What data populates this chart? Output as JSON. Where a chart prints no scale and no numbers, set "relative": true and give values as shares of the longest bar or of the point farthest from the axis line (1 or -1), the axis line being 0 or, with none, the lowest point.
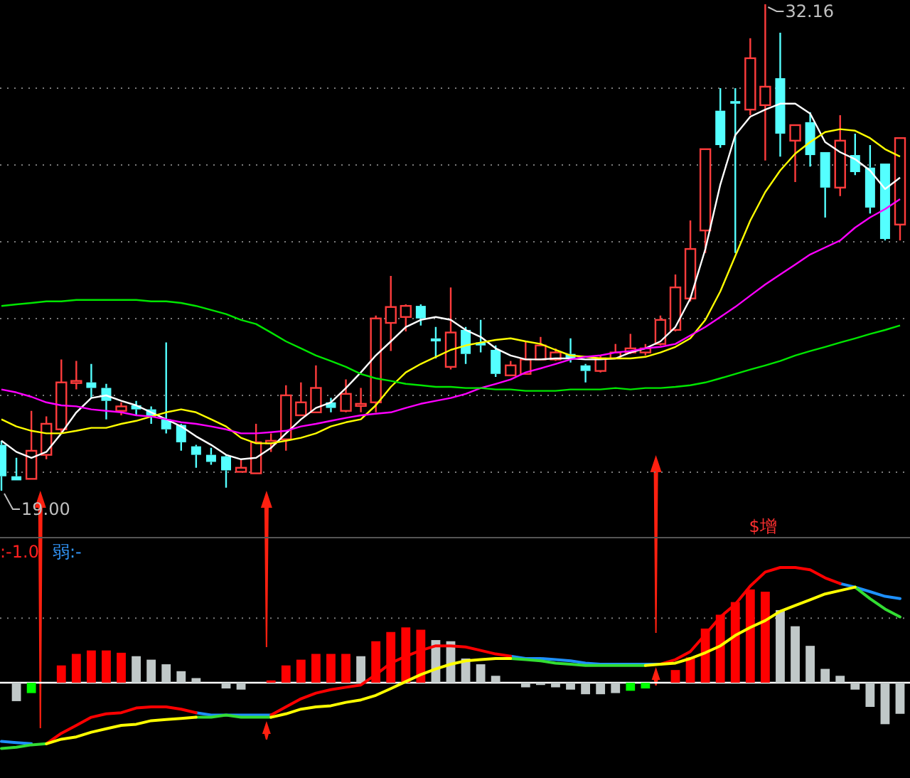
{
  "chart_data": [
    {
      "type": "candlestick",
      "grid": true,
      "categories": [
        null,
        null,
        null,
        null,
        null,
        null,
        null,
        null,
        null,
        null,
        null,
        null,
        null,
        null,
        null,
        null,
        null,
        null,
        null,
        null,
        null,
        null,
        null,
        null,
        null,
        null,
        null,
        null,
        null,
        null,
        null,
        null,
        null,
        null,
        null,
        null,
        null,
        null,
        null,
        null,
        null,
        null,
        null,
        null,
        null,
        null,
        null,
        null,
        null,
        null,
        null,
        null,
        null,
        null,
        null,
        null,
        null,
        null,
        null,
        null,
        null
      ],
      "ohlc": [
        [
          20.24,
          20.35,
          19.0,
          19.39
        ],
        [
          19.39,
          19.89,
          19.28,
          19.28
        ],
        [
          19.32,
          21.16,
          19.32,
          20.08
        ],
        [
          19.97,
          21.01,
          19.85,
          20.81
        ],
        [
          20.66,
          22.55,
          20.58,
          21.93
        ],
        [
          21.93,
          22.51,
          21.74,
          21.97
        ],
        [
          21.93,
          22.43,
          21.51,
          21.78
        ],
        [
          21.78,
          21.89,
          20.93,
          21.43
        ],
        [
          21.16,
          21.39,
          21.04,
          21.28
        ],
        [
          21.31,
          21.43,
          21.04,
          21.2
        ],
        [
          21.2,
          21.28,
          20.81,
          21.01
        ],
        [
          20.93,
          23.01,
          20.55,
          20.66
        ],
        [
          20.78,
          20.81,
          20.08,
          20.31
        ],
        [
          20.2,
          20.24,
          19.62,
          19.97
        ],
        [
          19.97,
          20.16,
          19.7,
          19.78
        ],
        [
          19.93,
          19.97,
          19.08,
          19.55
        ],
        [
          19.51,
          19.85,
          19.51,
          19.62
        ],
        [
          19.47,
          20.81,
          19.47,
          20.31
        ],
        [
          20.28,
          20.55,
          20.05,
          20.35
        ],
        [
          20.39,
          21.85,
          20.08,
          21.58
        ],
        [
          21.04,
          21.93,
          21.04,
          21.39
        ],
        [
          21.12,
          22.39,
          21.12,
          21.78
        ],
        [
          21.39,
          21.51,
          21.12,
          21.24
        ],
        [
          21.16,
          22.01,
          21.12,
          21.62
        ],
        [
          21.31,
          21.78,
          21.12,
          21.35
        ],
        [
          21.39,
          23.74,
          21.12,
          23.66
        ],
        [
          23.54,
          24.81,
          22.78,
          23.97
        ],
        [
          23.7,
          24.04,
          23.31,
          24.0
        ],
        [
          24.0,
          24.04,
          23.47,
          23.66
        ],
        [
          23.12,
          23.43,
          22.58,
          23.04
        ],
        [
          22.35,
          24.5,
          22.28,
          23.28
        ],
        [
          23.35,
          23.43,
          22.43,
          22.7
        ],
        [
          23.01,
          23.62,
          22.74,
          22.93
        ],
        [
          22.81,
          22.93,
          22.08,
          22.16
        ],
        [
          22.12,
          22.51,
          22.12,
          22.39
        ],
        [
          22.16,
          23.04,
          22.16,
          22.55
        ],
        [
          22.55,
          23.16,
          22.55,
          22.93
        ],
        [
          22.55,
          22.85,
          22.51,
          22.74
        ],
        [
          22.7,
          23.12,
          22.47,
          22.58
        ],
        [
          22.39,
          22.43,
          21.93,
          22.24
        ],
        [
          22.24,
          22.66,
          22.2,
          22.58
        ],
        [
          22.58,
          22.97,
          22.58,
          22.74
        ],
        [
          22.74,
          23.24,
          22.7,
          22.85
        ],
        [
          22.74,
          22.97,
          22.66,
          22.85
        ],
        [
          22.97,
          23.74,
          22.93,
          23.62
        ],
        [
          23.35,
          24.85,
          23.31,
          24.5
        ],
        [
          24.2,
          26.31,
          24.12,
          25.54
        ],
        [
          26.04,
          28.24,
          25.43,
          28.24
        ],
        [
          29.28,
          29.89,
          28.28,
          28.35
        ],
        [
          29.54,
          29.89,
          25.43,
          29.47
        ],
        [
          29.31,
          31.24,
          29.16,
          30.7
        ],
        [
          29.43,
          32.16,
          27.93,
          29.93
        ],
        [
          30.16,
          31.39,
          28.04,
          28.66
        ],
        [
          28.47,
          28.89,
          27.35,
          28.89
        ],
        [
          28.97,
          29.24,
          27.77,
          28.08
        ],
        [
          28.16,
          28.16,
          26.39,
          27.2
        ],
        [
          27.2,
          29.16,
          26.97,
          28.47
        ],
        [
          28.08,
          28.66,
          27.54,
          27.62
        ],
        [
          27.74,
          28.35,
          26.5,
          26.66
        ],
        [
          27.85,
          27.85,
          25.77,
          25.81
        ],
        [
          26.2,
          28.54,
          25.77,
          28.54
        ]
      ],
      "colors": [
        "#54ffff",
        "#54ffff",
        "#ff3c3c",
        "#ff3c3c",
        "#ff3c3c",
        "#ff3c3c",
        "#54ffff",
        "#54ffff",
        "#ff3c3c",
        "#54ffff",
        "#54ffff",
        "#54ffff",
        "#54ffff",
        "#54ffff",
        "#54ffff",
        "#54ffff",
        "#ff3c3c",
        "#ff3c3c",
        "#ff3c3c",
        "#ff3c3c",
        "#ff3c3c",
        "#ff3c3c",
        "#54ffff",
        "#ff3c3c",
        "#ff3c3c",
        "#ff3c3c",
        "#ff3c3c",
        "#ff3c3c",
        "#54ffff",
        "#54ffff",
        "#ff3c3c",
        "#54ffff",
        "#54ffff",
        "#54ffff",
        "#ff3c3c",
        "#ff3c3c",
        "#ff3c3c",
        "#ff3c3c",
        "#54ffff",
        "#54ffff",
        "#ff3c3c",
        "#ff3c3c",
        "#ff3c3c",
        "#ff3c3c",
        "#ff3c3c",
        "#ff3c3c",
        "#ff3c3c",
        "#ff3c3c",
        "#54ffff",
        "#54ffff",
        "#ff3c3c",
        "#ff3c3c",
        "#54ffff",
        "#ff3c3c",
        "#54ffff",
        "#54ffff",
        "#ff3c3c",
        "#54ffff",
        "#54ffff",
        "#54ffff",
        "#ff3c3c"
      ],
      "series": [
        {
          "type": "line",
          "color": "#ffffff",
          "values": [
            20.35,
            20.05,
            19.89,
            20.05,
            20.55,
            21.12,
            21.51,
            21.58,
            21.43,
            21.31,
            21.12,
            20.93,
            20.74,
            20.47,
            20.24,
            19.97,
            19.85,
            19.89,
            20.16,
            20.55,
            20.93,
            21.24,
            21.39,
            21.78,
            22.2,
            22.66,
            23.04,
            23.43,
            23.62,
            23.7,
            23.62,
            23.35,
            23.16,
            22.85,
            22.66,
            22.55,
            22.55,
            22.58,
            22.58,
            22.55,
            22.55,
            22.58,
            22.74,
            22.85,
            23.04,
            23.43,
            24.2,
            25.54,
            27.28,
            28.62,
            29.12,
            29.31,
            29.47,
            29.47,
            29.2,
            28.43,
            28.16,
            27.97,
            27.66,
            27.16,
            27.47
          ]
        },
        {
          "type": "line",
          "color": "#ffff00",
          "values": [
            20.93,
            20.74,
            20.62,
            20.55,
            20.55,
            20.62,
            20.7,
            20.7,
            20.81,
            20.89,
            21.01,
            21.12,
            21.2,
            21.12,
            20.93,
            20.74,
            20.43,
            20.28,
            20.28,
            20.35,
            20.43,
            20.55,
            20.74,
            20.85,
            20.93,
            21.31,
            21.81,
            22.2,
            22.43,
            22.62,
            22.81,
            22.93,
            23.01,
            23.08,
            23.12,
            23.04,
            22.97,
            22.81,
            22.66,
            22.62,
            22.58,
            22.58,
            22.58,
            22.62,
            22.74,
            22.89,
            23.12,
            23.62,
            24.39,
            25.35,
            26.31,
            27.08,
            27.66,
            28.12,
            28.43,
            28.7,
            28.78,
            28.74,
            28.54,
            28.24,
            28.04
          ]
        },
        {
          "type": "line",
          "color": "#ff00ff",
          "values": [
            21.74,
            21.66,
            21.54,
            21.39,
            21.31,
            21.28,
            21.2,
            21.16,
            21.12,
            21.04,
            21.01,
            20.93,
            20.85,
            20.81,
            20.74,
            20.66,
            20.55,
            20.55,
            20.58,
            20.62,
            20.74,
            20.81,
            20.89,
            20.97,
            21.04,
            21.08,
            21.12,
            21.24,
            21.35,
            21.43,
            21.51,
            21.62,
            21.78,
            21.89,
            22.01,
            22.2,
            22.31,
            22.43,
            22.55,
            22.62,
            22.66,
            22.74,
            22.78,
            22.85,
            22.89,
            22.97,
            23.2,
            23.43,
            23.7,
            23.97,
            24.28,
            24.58,
            24.85,
            25.12,
            25.39,
            25.58,
            25.77,
            26.12,
            26.39,
            26.62,
            26.89
          ]
        },
        {
          "type": "line",
          "color": "#00e600",
          "values": [
            24.0,
            24.04,
            24.08,
            24.12,
            24.12,
            24.16,
            24.16,
            24.16,
            24.16,
            24.16,
            24.12,
            24.12,
            24.08,
            24.0,
            23.89,
            23.78,
            23.62,
            23.51,
            23.28,
            23.04,
            22.85,
            22.66,
            22.51,
            22.35,
            22.16,
            22.04,
            21.97,
            21.89,
            21.85,
            21.81,
            21.81,
            21.78,
            21.78,
            21.74,
            21.74,
            21.7,
            21.7,
            21.7,
            21.74,
            21.74,
            21.74,
            21.78,
            21.74,
            21.78,
            21.78,
            21.81,
            21.85,
            21.93,
            22.04,
            22.16,
            22.28,
            22.39,
            22.51,
            22.66,
            22.78,
            22.89,
            23.01,
            23.12,
            23.24,
            23.35,
            23.47
          ]
        }
      ],
      "annotations": [
        "32.16",
        "19.00"
      ]
    },
    {
      "type": "bar",
      "relative": true,
      "ref_lines": [
        {
          "axis": "y",
          "value": 0.56,
          "line_style": "dotted",
          "color": "#7a7a7a"
        }
      ],
      "categories": [
        null,
        null,
        null,
        null,
        null,
        null,
        null,
        null,
        null,
        null,
        null,
        null,
        null,
        null,
        null,
        null,
        null,
        null,
        null,
        null,
        null,
        null,
        null,
        null,
        null,
        null,
        null,
        null,
        null,
        null,
        null,
        null,
        null,
        null,
        null,
        null,
        null,
        null,
        null,
        null,
        null,
        null,
        null,
        null,
        null,
        null,
        null,
        null,
        null,
        null,
        null,
        null,
        null,
        null,
        null,
        null,
        null,
        null,
        null,
        null,
        null
      ],
      "series": [
        {
          "type": "bar",
          "colors": [
            null,
            "#c0c8c8",
            "#00ff00",
            null,
            "#ff0000",
            "#ff0000",
            "#ff0000",
            "#ff0000",
            "#ff0000",
            "#c0c8c8",
            "#c0c8c8",
            "#c0c8c8",
            "#c0c8c8",
            "#c0c8c8",
            null,
            "#c0c8c8",
            "#c0c8c8",
            null,
            "#ff0000",
            "#ff0000",
            "#ff0000",
            "#ff0000",
            "#ff0000",
            "#ff0000",
            "#c0c8c8",
            "#ff0000",
            "#ff0000",
            "#ff0000",
            "#ff0000",
            "#c0c8c8",
            "#c0c8c8",
            "#c0c8c8",
            "#c0c8c8",
            "#c0c8c8",
            null,
            "#c0c8c8",
            "#c0c8c8",
            "#c0c8c8",
            "#c0c8c8",
            "#c0c8c8",
            "#c0c8c8",
            "#c0c8c8",
            "#00ff00",
            "#00ff00",
            null,
            "#ff0000",
            "#ff0000",
            "#ff0000",
            "#ff0000",
            "#ff0000",
            "#ff0000",
            "#ff0000",
            "#c0c8c8",
            "#c0c8c8",
            "#c0c8c8",
            "#c0c8c8",
            "#c0c8c8",
            "#c0c8c8",
            "#c0c8c8",
            "#c0c8c8",
            "#c0c8c8"
          ],
          "values": [
            null,
            -0.16,
            -0.09,
            null,
            0.15,
            0.25,
            0.28,
            0.28,
            0.26,
            0.23,
            0.2,
            0.16,
            0.1,
            0.04,
            null,
            -0.05,
            -0.06,
            null,
            0.02,
            0.15,
            0.2,
            0.25,
            0.25,
            0.25,
            0.23,
            0.36,
            0.44,
            0.48,
            0.46,
            0.37,
            0.36,
            0.21,
            0.16,
            0.06,
            null,
            -0.04,
            -0.02,
            -0.04,
            -0.06,
            -0.1,
            -0.1,
            -0.09,
            -0.07,
            -0.05,
            null,
            0.11,
            0.22,
            0.47,
            0.59,
            0.7,
            0.81,
            0.79,
            0.63,
            0.49,
            0.32,
            0.12,
            0.06,
            -0.06,
            -0.21,
            -0.36,
            -0.27
          ]
        },
        {
          "type": "line",
          "color": "#1e90ff",
          "values": [
            -0.51,
            -0.52,
            -0.53,
            null,
            null,
            null,
            null,
            null,
            null,
            null,
            null,
            null,
            null,
            -0.26,
            -0.28,
            -0.28,
            -0.28,
            -0.28,
            -0.28,
            null,
            null,
            null,
            null,
            null,
            null,
            null,
            null,
            null,
            null,
            null,
            null,
            null,
            null,
            null,
            0.23,
            0.21,
            0.21,
            0.2,
            0.19,
            0.17,
            0.16,
            0.16,
            0.16,
            0.16,
            0.16,
            null,
            null,
            null,
            null,
            null,
            null,
            null,
            null,
            null,
            null,
            null,
            0.86,
            0.83,
            0.79,
            0.75,
            0.73
          ]
        },
        {
          "type": "line",
          "color": "#ff0000",
          "values": [
            null,
            null,
            null,
            -0.53,
            -0.44,
            -0.37,
            -0.3,
            -0.27,
            -0.26,
            -0.22,
            -0.21,
            -0.21,
            -0.23,
            -0.26,
            null,
            null,
            null,
            null,
            -0.28,
            -0.21,
            -0.14,
            -0.09,
            -0.06,
            -0.04,
            -0.02,
            0.07,
            0.17,
            0.23,
            0.28,
            0.32,
            0.32,
            0.31,
            0.28,
            0.25,
            0.23,
            null,
            null,
            null,
            null,
            null,
            null,
            null,
            null,
            null,
            0.16,
            0.2,
            0.27,
            0.42,
            0.57,
            0.68,
            0.84,
            0.96,
            1,
            1,
            0.98,
            0.91,
            0.86,
            null,
            null,
            null,
            null
          ]
        },
        {
          "type": "line",
          "color": "#33dd33",
          "values": [
            -0.57,
            -0.56,
            -0.54,
            -0.53,
            null,
            null,
            null,
            null,
            null,
            null,
            null,
            null,
            null,
            -0.3,
            -0.3,
            -0.28,
            -0.3,
            -0.3,
            -0.3,
            null,
            null,
            null,
            null,
            null,
            null,
            null,
            null,
            null,
            null,
            null,
            null,
            null,
            null,
            null,
            0.21,
            0.2,
            0.19,
            0.17,
            0.16,
            0.15,
            0.15,
            0.15,
            0.15,
            0.15,
            null,
            null,
            null,
            null,
            null,
            null,
            null,
            null,
            null,
            null,
            null,
            null,
            null,
            0.83,
            0.73,
            0.64,
            0.57
          ]
        },
        {
          "type": "line",
          "color": "#ffff00",
          "values": [
            null,
            null,
            null,
            -0.53,
            -0.49,
            -0.47,
            -0.43,
            -0.4,
            -0.37,
            -0.36,
            -0.33,
            -0.32,
            -0.31,
            -0.3,
            null,
            null,
            null,
            null,
            -0.3,
            -0.27,
            -0.23,
            -0.21,
            -0.2,
            -0.17,
            -0.15,
            -0.11,
            -0.05,
            0.01,
            0.07,
            0.12,
            0.16,
            0.19,
            0.2,
            0.21,
            0.21,
            null,
            null,
            null,
            null,
            null,
            null,
            null,
            null,
            0.15,
            0.16,
            0.17,
            0.21,
            0.26,
            0.32,
            0.41,
            0.48,
            0.54,
            0.62,
            0.67,
            0.72,
            0.77,
            0.8,
            0.83,
            null,
            null,
            null
          ]
        }
      ],
      "annotations": [
        ":-1.0",
        "弱:-",
        "$增"
      ]
    }
  ]
}
